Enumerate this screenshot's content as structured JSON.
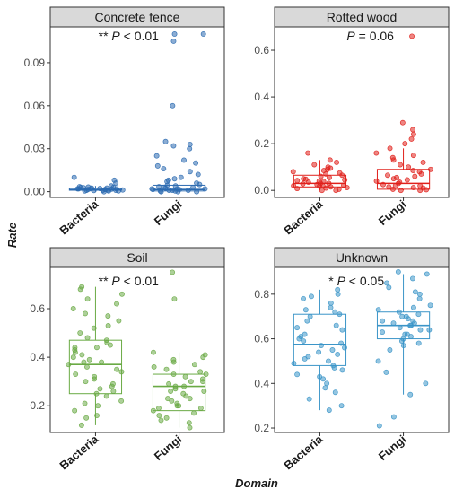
{
  "chart_data": {
    "type": "box",
    "xlabel": "Domain",
    "ylabel": "Rate",
    "categories": [
      "Bacteria",
      "Fungi"
    ],
    "panels": [
      {
        "title": "Concrete fence",
        "color": "#2b6ab0",
        "ylim": [
          -0.004,
          0.115
        ],
        "yticks": [
          0.0,
          0.03,
          0.06,
          0.09
        ],
        "tick_labels": [
          "0.00",
          "0.03",
          "0.06",
          "0.09"
        ],
        "annotation": {
          "stars": "**",
          "p": "P",
          "rest": " < 0.01"
        },
        "boxes": [
          {
            "name": "Bacteria",
            "min": 0.0,
            "q1": 0.001,
            "median": 0.0015,
            "q3": 0.0025,
            "max": 0.004
          },
          {
            "name": "Fungi",
            "min": 0.0,
            "q1": 0.0005,
            "median": 0.0015,
            "q3": 0.0045,
            "max": 0.011
          }
        ],
        "points": [
          [
            0.0,
            0.0005,
            0.001,
            0.0012,
            0.0015,
            0.0015,
            0.002,
            0.002,
            0.0025,
            0.003,
            0.0005,
            0.001,
            0.0018,
            0.002,
            0.0022,
            0.003,
            0.0035,
            0.004,
            0.006,
            0.008,
            0.01,
            0.0008,
            0.0012,
            0.0016,
            0.0028,
            0.0032,
            0.0005,
            0.001,
            0.002,
            0.0025
          ],
          [
            0.0,
            0.0,
            0.0005,
            0.001,
            0.001,
            0.0015,
            0.002,
            0.002,
            0.003,
            0.003,
            0.004,
            0.005,
            0.006,
            0.008,
            0.01,
            0.012,
            0.014,
            0.018,
            0.022,
            0.025,
            0.03,
            0.032,
            0.033,
            0.035,
            0.06,
            0.105,
            0.11,
            0.11,
            0.0005,
            0.0015,
            0.0025,
            0.0035,
            0.001,
            0.002,
            0.0045,
            0.007,
            0.009,
            0.016,
            0.02,
            0.0
          ]
        ]
      },
      {
        "title": "Rotted wood",
        "color": "#e0201b",
        "ylim": [
          -0.03,
          0.7
        ],
        "yticks": [
          0.0,
          0.2,
          0.4,
          0.6
        ],
        "tick_labels": [
          "0.0",
          "0.2",
          "0.4",
          "0.6"
        ],
        "annotation": {
          "stars": "",
          "p": "P",
          "rest": " = 0.06"
        },
        "boxes": [
          {
            "name": "Bacteria",
            "min": 0.0,
            "q1": 0.015,
            "median": 0.03,
            "q3": 0.065,
            "max": 0.13
          },
          {
            "name": "Fungi",
            "min": 0.0,
            "q1": 0.005,
            "median": 0.03,
            "q3": 0.09,
            "max": 0.18
          }
        ],
        "points": [
          [
            0.0,
            0.005,
            0.01,
            0.015,
            0.02,
            0.02,
            0.025,
            0.03,
            0.03,
            0.035,
            0.04,
            0.045,
            0.05,
            0.06,
            0.065,
            0.07,
            0.08,
            0.09,
            0.1,
            0.11,
            0.12,
            0.13,
            0.16,
            0.0,
            0.012,
            0.018,
            0.028,
            0.038,
            0.055,
            0.075,
            0.085,
            0.095,
            0.008,
            0.022,
            0.042,
            0.048
          ],
          [
            0.0,
            0.0,
            0.005,
            0.01,
            0.015,
            0.02,
            0.03,
            0.035,
            0.04,
            0.05,
            0.06,
            0.07,
            0.08,
            0.09,
            0.1,
            0.12,
            0.14,
            0.16,
            0.18,
            0.2,
            0.22,
            0.24,
            0.26,
            0.29,
            0.66,
            0.003,
            0.012,
            0.025,
            0.045,
            0.065,
            0.085,
            0.11,
            0.13,
            0.15,
            0.02,
            0.055
          ]
        ]
      },
      {
        "title": "Soil",
        "color": "#6aaa45",
        "ylim": [
          0.09,
          0.77
        ],
        "yticks": [
          0.2,
          0.4,
          0.6
        ],
        "tick_labels": [
          "0.2",
          "0.4",
          "0.6"
        ],
        "annotation": {
          "stars": "**",
          "p": "P",
          "rest": " < 0.01"
        },
        "boxes": [
          {
            "name": "Bacteria",
            "min": 0.12,
            "q1": 0.25,
            "median": 0.37,
            "q3": 0.47,
            "max": 0.69
          },
          {
            "name": "Fungi",
            "min": 0.11,
            "q1": 0.18,
            "median": 0.28,
            "q3": 0.33,
            "max": 0.42
          }
        ],
        "points": [
          [
            0.12,
            0.15,
            0.18,
            0.2,
            0.22,
            0.24,
            0.25,
            0.26,
            0.28,
            0.3,
            0.31,
            0.32,
            0.33,
            0.35,
            0.36,
            0.37,
            0.38,
            0.39,
            0.4,
            0.42,
            0.43,
            0.44,
            0.45,
            0.46,
            0.47,
            0.48,
            0.5,
            0.52,
            0.55,
            0.58,
            0.6,
            0.62,
            0.64,
            0.66,
            0.68,
            0.69,
            0.27,
            0.34,
            0.41,
            0.53,
            0.21,
            0.29,
            0.38,
            0.44,
            0.57,
            0.16
          ],
          [
            0.11,
            0.13,
            0.15,
            0.16,
            0.17,
            0.18,
            0.19,
            0.2,
            0.21,
            0.22,
            0.23,
            0.24,
            0.25,
            0.26,
            0.27,
            0.28,
            0.28,
            0.29,
            0.3,
            0.31,
            0.32,
            0.33,
            0.34,
            0.35,
            0.36,
            0.38,
            0.39,
            0.4,
            0.41,
            0.42,
            0.64,
            0.75,
            0.14,
            0.19,
            0.23,
            0.26,
            0.3,
            0.33,
            0.37,
            0.2
          ]
        ]
      },
      {
        "title": "Unknown",
        "color": "#3b95c8",
        "ylim": [
          0.18,
          0.92
        ],
        "yticks": [
          0.2,
          0.4,
          0.6,
          0.8
        ],
        "tick_labels": [
          "0.2",
          "0.4",
          "0.6",
          "0.8"
        ],
        "annotation": {
          "stars": "*",
          "p": "P",
          "rest": " < 0.05"
        },
        "boxes": [
          {
            "name": "Bacteria",
            "min": 0.28,
            "q1": 0.48,
            "median": 0.575,
            "q3": 0.71,
            "max": 0.82
          },
          {
            "name": "Fungi",
            "min": 0.35,
            "q1": 0.6,
            "median": 0.66,
            "q3": 0.72,
            "max": 0.89
          }
        ],
        "points": [
          [
            0.28,
            0.3,
            0.33,
            0.36,
            0.38,
            0.4,
            0.42,
            0.44,
            0.46,
            0.48,
            0.49,
            0.5,
            0.52,
            0.53,
            0.55,
            0.56,
            0.57,
            0.58,
            0.59,
            0.6,
            0.62,
            0.64,
            0.66,
            0.68,
            0.7,
            0.71,
            0.72,
            0.74,
            0.76,
            0.78,
            0.8,
            0.82,
            0.47,
            0.51,
            0.61,
            0.65,
            0.73,
            0.79,
            0.54,
            0.43
          ],
          [
            0.21,
            0.25,
            0.35,
            0.4,
            0.45,
            0.5,
            0.55,
            0.58,
            0.6,
            0.61,
            0.62,
            0.63,
            0.64,
            0.65,
            0.66,
            0.66,
            0.67,
            0.68,
            0.69,
            0.7,
            0.71,
            0.72,
            0.73,
            0.75,
            0.78,
            0.8,
            0.83,
            0.85,
            0.87,
            0.89,
            0.9,
            0.59,
            0.64,
            0.68,
            0.7,
            0.74,
            0.62,
            0.57,
            0.67,
            0.81
          ]
        ]
      }
    ]
  }
}
